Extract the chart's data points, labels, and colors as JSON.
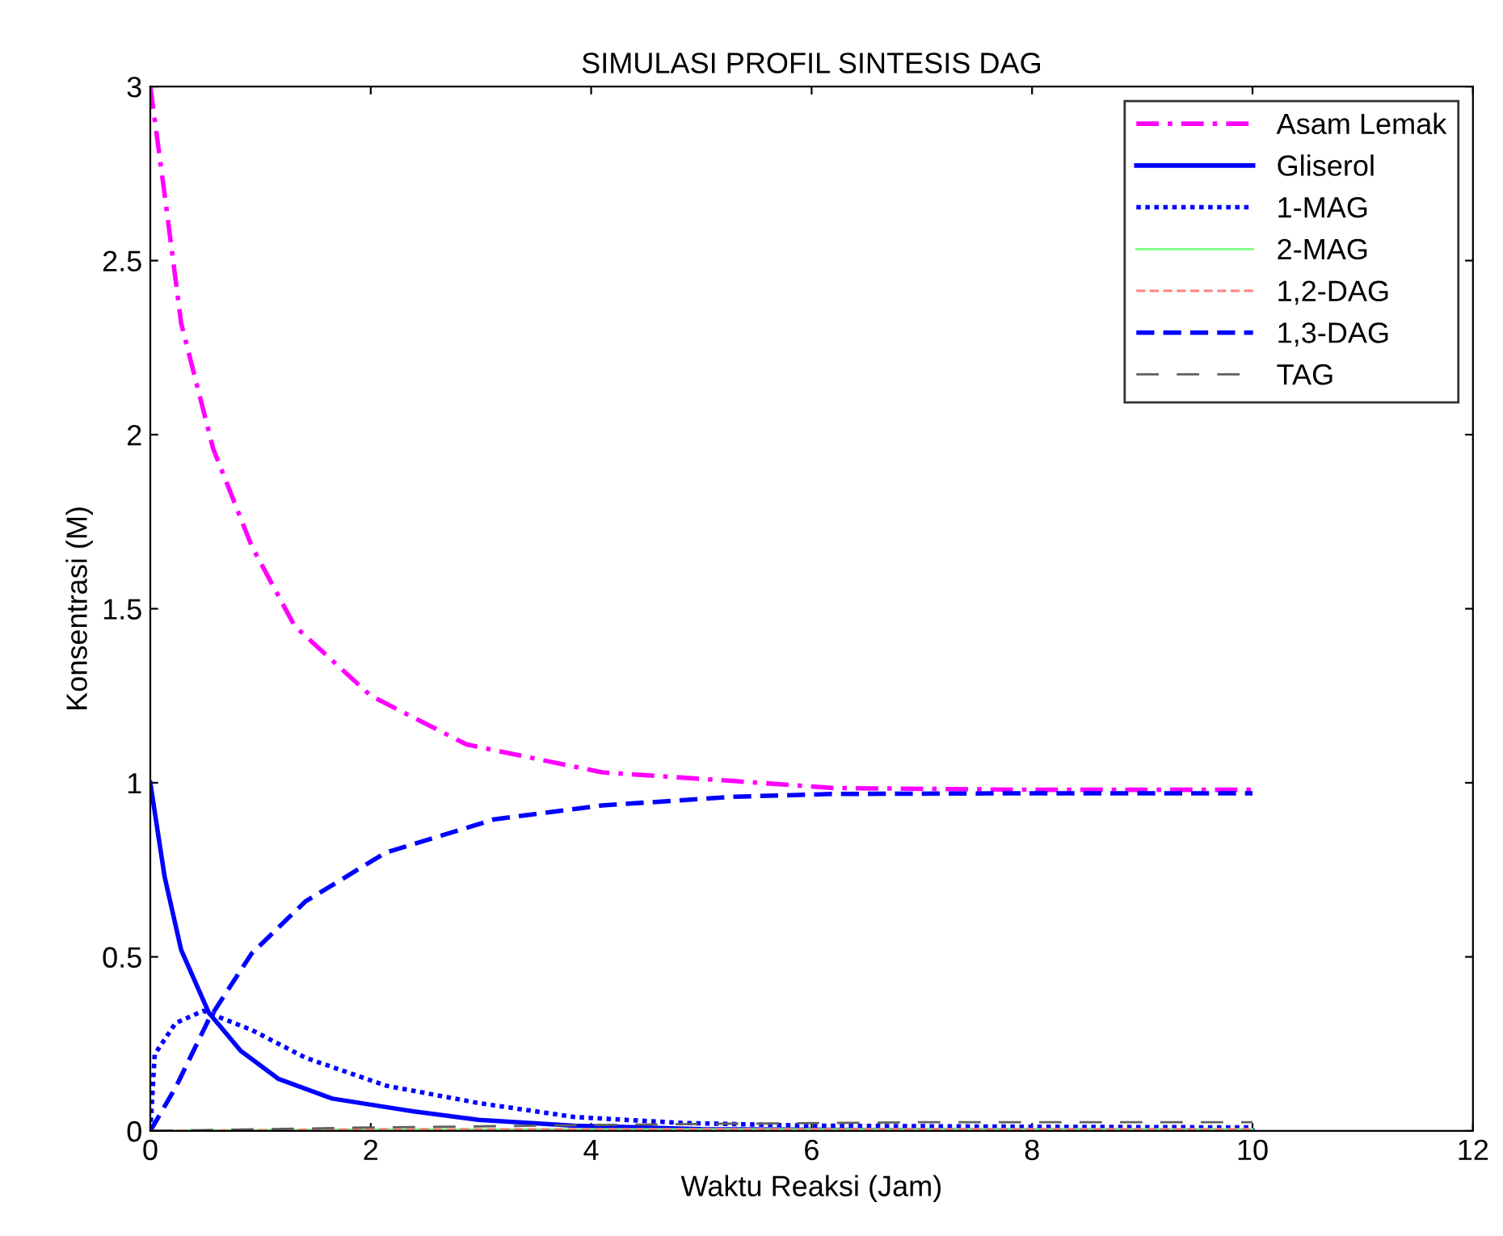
{
  "chart_data": {
    "type": "line",
    "title": "SIMULASI PROFIL SINTESIS DAG",
    "xlabel": "Waktu Reaksi (Jam)",
    "ylabel": "Konsentrasi (M)",
    "xlim": [
      0,
      12
    ],
    "xticks": [
      0,
      2,
      4,
      6,
      8,
      10,
      12
    ],
    "ylim": [
      0,
      3
    ],
    "yticks": [
      0,
      0.5,
      1,
      1.5,
      2,
      2.5,
      3
    ],
    "grid": false,
    "legend": "top right",
    "series": [
      {
        "name": "Asam Lemak",
        "color": "#ff00ff",
        "line_style": "dashdot",
        "x": [
          0,
          0.13,
          0.28,
          0.57,
          0.92,
          1.31,
          2.0,
          2.87,
          4.1,
          5.3,
          6.2,
          8,
          10
        ],
        "values": [
          3,
          2.69,
          2.32,
          1.96,
          1.68,
          1.45,
          1.25,
          1.11,
          1.03,
          1.005,
          0.985,
          0.98,
          0.98
        ]
      },
      {
        "name": "Gliserol",
        "color": "#0000ff",
        "line_style": "solid",
        "x": [
          0,
          0.13,
          0.28,
          0.53,
          0.82,
          1.16,
          1.65,
          2.39,
          2.98,
          3.85,
          5,
          7,
          10
        ],
        "values": [
          1,
          0.73,
          0.52,
          0.34,
          0.23,
          0.15,
          0.093,
          0.056,
          0.032,
          0.015,
          0.005,
          0.002,
          0.001
        ]
      },
      {
        "name": "1-MAG",
        "color": "#0000ff",
        "line_style": "dotted",
        "x": [
          0,
          0.04,
          0.23,
          0.48,
          0.92,
          1.41,
          2.14,
          2.98,
          3.85,
          4.82,
          6,
          8,
          10
        ],
        "values": [
          0,
          0.22,
          0.31,
          0.345,
          0.29,
          0.21,
          0.13,
          0.08,
          0.04,
          0.023,
          0.015,
          0.012,
          0.01
        ]
      },
      {
        "name": "2-MAG",
        "color": "#80ff80",
        "line_style": "solid",
        "x": [
          0,
          2,
          5,
          10
        ],
        "values": [
          0,
          0.005,
          0.005,
          0.005
        ]
      },
      {
        "name": "1,2-DAG",
        "color": "#ff8080",
        "line_style": "dashed",
        "x": [
          0,
          2,
          5,
          10
        ],
        "values": [
          0,
          0.005,
          0.005,
          0.005
        ]
      },
      {
        "name": "1,3-DAG",
        "color": "#0000ff",
        "line_style": "dashed",
        "x": [
          0,
          0.23,
          0.53,
          0.92,
          1.41,
          2.14,
          3.12,
          4.1,
          5.3,
          6.2,
          8,
          10
        ],
        "values": [
          0,
          0.125,
          0.32,
          0.51,
          0.66,
          0.8,
          0.895,
          0.935,
          0.96,
          0.968,
          0.97,
          0.97
        ]
      },
      {
        "name": "TAG",
        "color": "#606060",
        "line_style": "longdash",
        "x": [
          0,
          2,
          5,
          7,
          10
        ],
        "values": [
          0,
          0.01,
          0.02,
          0.025,
          0.025
        ]
      }
    ]
  }
}
